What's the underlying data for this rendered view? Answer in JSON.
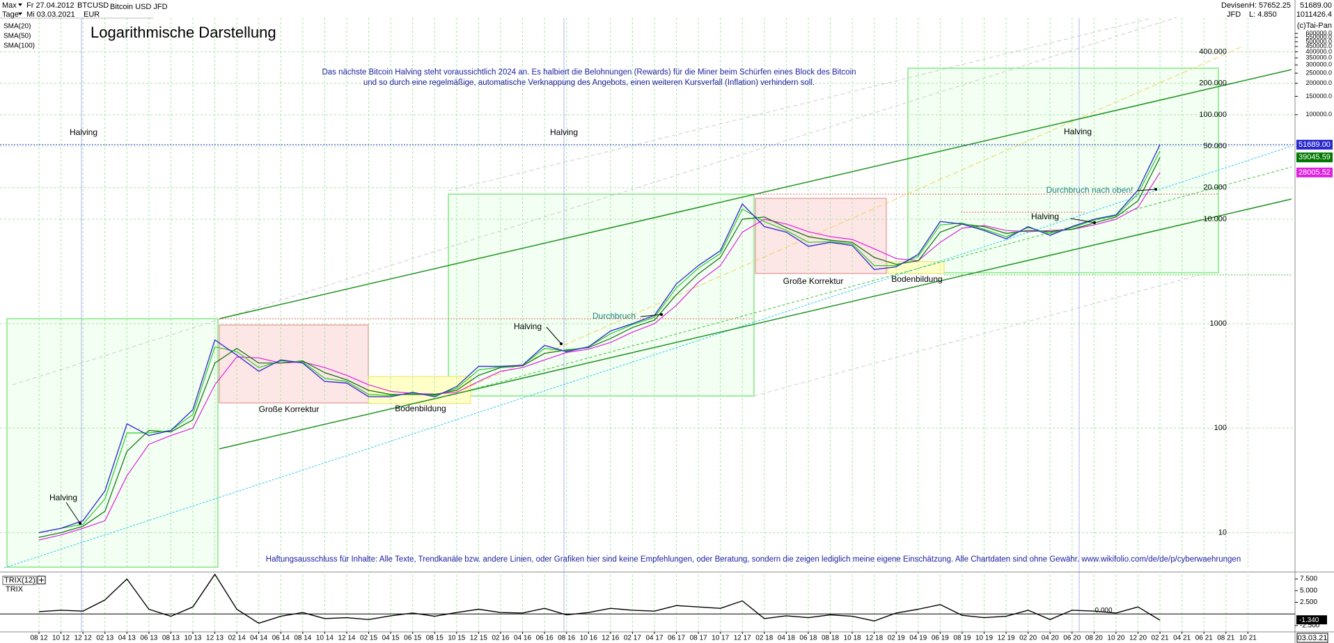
{
  "header": {
    "period": "Max",
    "interval": "Tage",
    "from": "Fr 27.04.2012",
    "to": "Mi 03.03.2021",
    "symbol": "BTCUSD",
    "currency": "EUR",
    "name": "Bitcoin USD JFD",
    "market": "Devisen",
    "broker": "JFD",
    "high": "H: 57652.25",
    "low": "L: 4.850",
    "copyright": "(c)Tai-Pan",
    "date": "03.03.21"
  },
  "chart_data": [
    {
      "type": "line",
      "subtitle": "Logarithmische Darstellung",
      "log_scale": true,
      "grid": true,
      "categories": [
        "08 12",
        "10 12",
        "12 12",
        "02 13",
        "04 13",
        "06 13",
        "08 13",
        "10 13",
        "12 13",
        "02 14",
        "04 14",
        "06 14",
        "08 14",
        "10 14",
        "12 14",
        "02 15",
        "04 15",
        "06 15",
        "08 15",
        "10 15",
        "12 15",
        "02 16",
        "04 16",
        "06 16",
        "08 16",
        "10 16",
        "12 16",
        "02 17",
        "04 17",
        "06 17",
        "08 17",
        "10 17",
        "12 17",
        "02 18",
        "04 18",
        "06 18",
        "08 18",
        "10 18",
        "12 18",
        "02 19",
        "04 19",
        "06 19",
        "08 19",
        "10 19",
        "12 19",
        "02 20",
        "04 20",
        "06 20",
        "08 20",
        "10 20",
        "12 20",
        "02 21",
        "04 21",
        "06 21",
        "08 21",
        "10 21"
      ],
      "ylim": [
        4.6,
        1011426.4
      ],
      "yticks": [
        10,
        100,
        1000,
        {
          "value": 10000,
          "label": "10.000"
        },
        {
          "value": 20000,
          "label": "20.000"
        },
        {
          "value": 50000,
          "label": "50.000"
        },
        {
          "value": 100000,
          "label": "100.000"
        },
        {
          "value": 200000,
          "label": "200.000"
        },
        {
          "value": 400000,
          "label": "400.000"
        }
      ],
      "y2lim": [
        4.6,
        1011426.4
      ],
      "y2ticks": [
        {
          "value": 100000,
          "label": "100000.0"
        },
        {
          "value": 150000,
          "label": "150000.0"
        },
        {
          "value": 200000,
          "label": "200000.0"
        },
        {
          "value": 250000,
          "label": "250000.0"
        },
        {
          "value": 300000,
          "label": "300000.0"
        },
        {
          "value": 350000,
          "label": "350000.0"
        },
        {
          "value": 400000,
          "label": "400000.0"
        },
        {
          "value": 450000,
          "label": "450000.0"
        },
        {
          "value": 500000,
          "label": "500000.0"
        },
        {
          "value": 550000,
          "label": "550000.0"
        },
        {
          "value": 600000,
          "label": "600000.0"
        }
      ],
      "series": [
        {
          "name": "BTCUSD",
          "color": "#3a2fd0",
          "values": [
            10,
            11,
            13,
            25,
            110,
            85,
            95,
            150,
            700,
            500,
            350,
            450,
            420,
            280,
            270,
            200,
            200,
            220,
            200,
            250,
            390,
            390,
            400,
            620,
            540,
            600,
            850,
            1000,
            1200,
            2400,
            3600,
            5000,
            14000,
            8500,
            7500,
            5500,
            6000,
            5600,
            3300,
            3500,
            4600,
            9500,
            9000,
            7800,
            6500,
            8500,
            7000,
            8500,
            10000,
            11000,
            19000,
            51689,
            null,
            null,
            null,
            null
          ],
          "value_labels": [
            null,
            null,
            null,
            null,
            null,
            null,
            null,
            null,
            null,
            null,
            null,
            null,
            null,
            null,
            null,
            null,
            null,
            null,
            null,
            null,
            null,
            null,
            null,
            null,
            null,
            null,
            null,
            null,
            null,
            null,
            null,
            null,
            null,
            null,
            null,
            null,
            null,
            null,
            null,
            null,
            null,
            null,
            null,
            null,
            null,
            null,
            null,
            null,
            null,
            null,
            null,
            "51689.00",
            null,
            null,
            null,
            null
          ]
        },
        {
          "name": "SMA(20)",
          "color": "#22cc22",
          "values": [
            10,
            11,
            12,
            21,
            90,
            90,
            95,
            135,
            600,
            540,
            380,
            440,
            430,
            300,
            280,
            210,
            205,
            215,
            205,
            240,
            360,
            385,
            400,
            580,
            550,
            600,
            800,
            980,
            1150,
            2200,
            3400,
            4700,
            12500,
            9500,
            7800,
            6000,
            6100,
            5800,
            3600,
            3600,
            4400,
            8800,
            9200,
            8000,
            6800,
            8300,
            7300,
            8300,
            9800,
            10800,
            17500,
            45000,
            null,
            null,
            null,
            null
          ]
        },
        {
          "name": "SMA(50)",
          "color": "#0a6a0a",
          "values": [
            9,
            10,
            11.5,
            16,
            60,
            95,
            92,
            120,
            420,
            580,
            420,
            420,
            440,
            340,
            290,
            230,
            210,
            210,
            210,
            230,
            320,
            380,
            395,
            520,
            560,
            590,
            720,
            920,
            1080,
            1900,
            3000,
            4300,
            10000,
            10500,
            8300,
            6800,
            6300,
            6000,
            4300,
            3700,
            4000,
            7500,
            9000,
            8500,
            7300,
            7800,
            7600,
            8000,
            9200,
            10500,
            15000,
            39045.59,
            null,
            null,
            null,
            null
          ]
        },
        {
          "name": "SMA(100)",
          "color": "#e020e0",
          "values": [
            8.5,
            9.5,
            11,
            13,
            35,
            70,
            85,
            100,
            260,
            480,
            470,
            420,
            430,
            380,
            320,
            260,
            225,
            215,
            212,
            220,
            280,
            350,
            380,
            450,
            530,
            570,
            660,
            830,
            1000,
            1500,
            2500,
            3600,
            7500,
            10000,
            9000,
            7600,
            6800,
            6400,
            5200,
            4200,
            4000,
            6000,
            8200,
            8700,
            7800,
            7600,
            7800,
            8000,
            8800,
            10000,
            13000,
            28005.52,
            null,
            null,
            null,
            null
          ]
        }
      ],
      "annotations": [
        "Halving",
        "Halving",
        "Halving",
        "Halving",
        "Halving",
        "Halving",
        "Große Korrektur",
        "Große Korrektur",
        "Bodenbildung",
        "Bodenbildung",
        "Durchbruch",
        "Durchbruch nach oben!",
        "Das nächste Bitcoin Halving steht voraussichtlich 2024 an. Es halbiert die Belohnungen (Rewards) für die Miner beim Schürfen eines Block des Bitcoin",
        "und so durch eine regelmäßige, automatische Verknappung des Angebots, einen weiteren Kursverfall (Inflation) verhindern soll.",
        "Haftungsausschluss für Inhalte: Alle Texte, Trendkanäle bzw. andere Linien, oder Grafiken hier sind keine Empfehlungen, oder Beratung, sondern die zeigen lediglich meine eigene Einschätzung. Alle Chartdaten sind ohne Gewähr.  www.wikifolio.com/de/de/p/cyberwaehrungen"
      ]
    },
    {
      "type": "line",
      "title": "TRIX(12)",
      "ylim": [
        -3.7,
        8.4
      ],
      "yticks": [
        {
          "value": 7.5,
          "label": "7.500"
        },
        {
          "value": 5,
          "label": "5.000"
        },
        {
          "value": 2.5,
          "label": "2.500"
        },
        {
          "value": 0,
          "label": "0.000"
        },
        {
          "value": -2.5,
          "label": "-2.500"
        }
      ],
      "series": [
        {
          "name": "TRIX",
          "color": "#000000",
          "values": [
            0.5,
            0.8,
            0.6,
            3,
            7.5,
            1,
            -0.5,
            1.5,
            8.5,
            1,
            -2,
            -0.5,
            0.3,
            -1,
            -0.8,
            -1.2,
            -0.4,
            0.2,
            -0.5,
            0.3,
            1,
            0.3,
            0.2,
            1.2,
            -0.2,
            0.3,
            1.2,
            0.8,
            0.6,
            1.8,
            1.5,
            1.2,
            2.8,
            -1,
            -0.4,
            -0.8,
            -0.2,
            -0.5,
            -1.5,
            0.2,
            1,
            2,
            -0.3,
            -0.8,
            -0.5,
            0.8,
            -1.2,
            0.8,
            0.6,
            0.2,
            1.5,
            -1.34,
            null,
            null,
            null,
            null
          ],
          "value_labels": [
            null,
            null,
            null,
            null,
            null,
            null,
            null,
            null,
            null,
            null,
            null,
            null,
            null,
            null,
            null,
            null,
            null,
            null,
            null,
            null,
            null,
            null,
            null,
            null,
            null,
            null,
            null,
            null,
            null,
            null,
            null,
            null,
            null,
            null,
            null,
            null,
            null,
            null,
            null,
            null,
            null,
            null,
            null,
            null,
            null,
            null,
            null,
            null,
            null,
            null,
            null,
            "-1.340",
            null,
            null,
            null,
            null
          ]
        }
      ]
    }
  ]
}
